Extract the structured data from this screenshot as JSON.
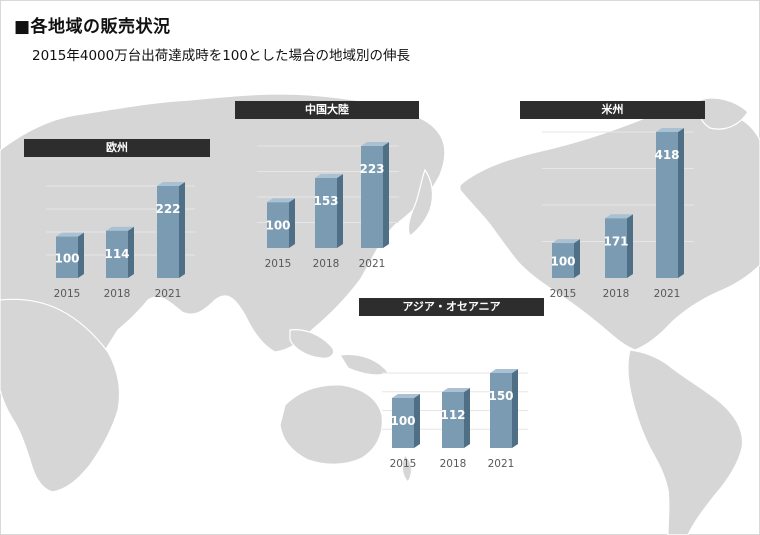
{
  "title": "■各地域の販売状況",
  "subtitle": "2015年4000万台出荷達成時を100とした場合の地域別の伸長",
  "colors": {
    "map_land": "#d6d6d6",
    "map_border": "#ffffff",
    "header_bg": "#2d2d2d",
    "bar_front": "#7b9bb3",
    "bar_side": "#4f6f86",
    "bar_top": "#a9c1d2",
    "tick_text": "#595959",
    "value_text": "#ffffff"
  },
  "chart_data": [
    {
      "type": "bar",
      "title": "欧州",
      "categories": [
        "2015",
        "2018",
        "2021"
      ],
      "values": [
        100,
        114,
        222
      ],
      "data_labels": [
        "100",
        "114",
        "222"
      ],
      "ylim": [
        0,
        222
      ]
    },
    {
      "type": "bar",
      "title": "中国大陸",
      "categories": [
        "2015",
        "2018",
        "2021"
      ],
      "values": [
        100,
        153,
        223
      ],
      "data_labels": [
        "100",
        "153",
        "223"
      ],
      "ylim": [
        0,
        223
      ]
    },
    {
      "type": "bar",
      "title": "米州",
      "categories": [
        "2015",
        "2018",
        "2021"
      ],
      "values": [
        100,
        171,
        418
      ],
      "data_labels": [
        "100",
        "171",
        "418"
      ],
      "ylim": [
        0,
        418
      ]
    },
    {
      "type": "bar",
      "title": "アジア・オセアニア",
      "categories": [
        "2015",
        "2018",
        "2021"
      ],
      "values": [
        100,
        112,
        150
      ],
      "data_labels": [
        "100",
        "112",
        "150"
      ],
      "ylim": [
        0,
        150
      ]
    }
  ]
}
